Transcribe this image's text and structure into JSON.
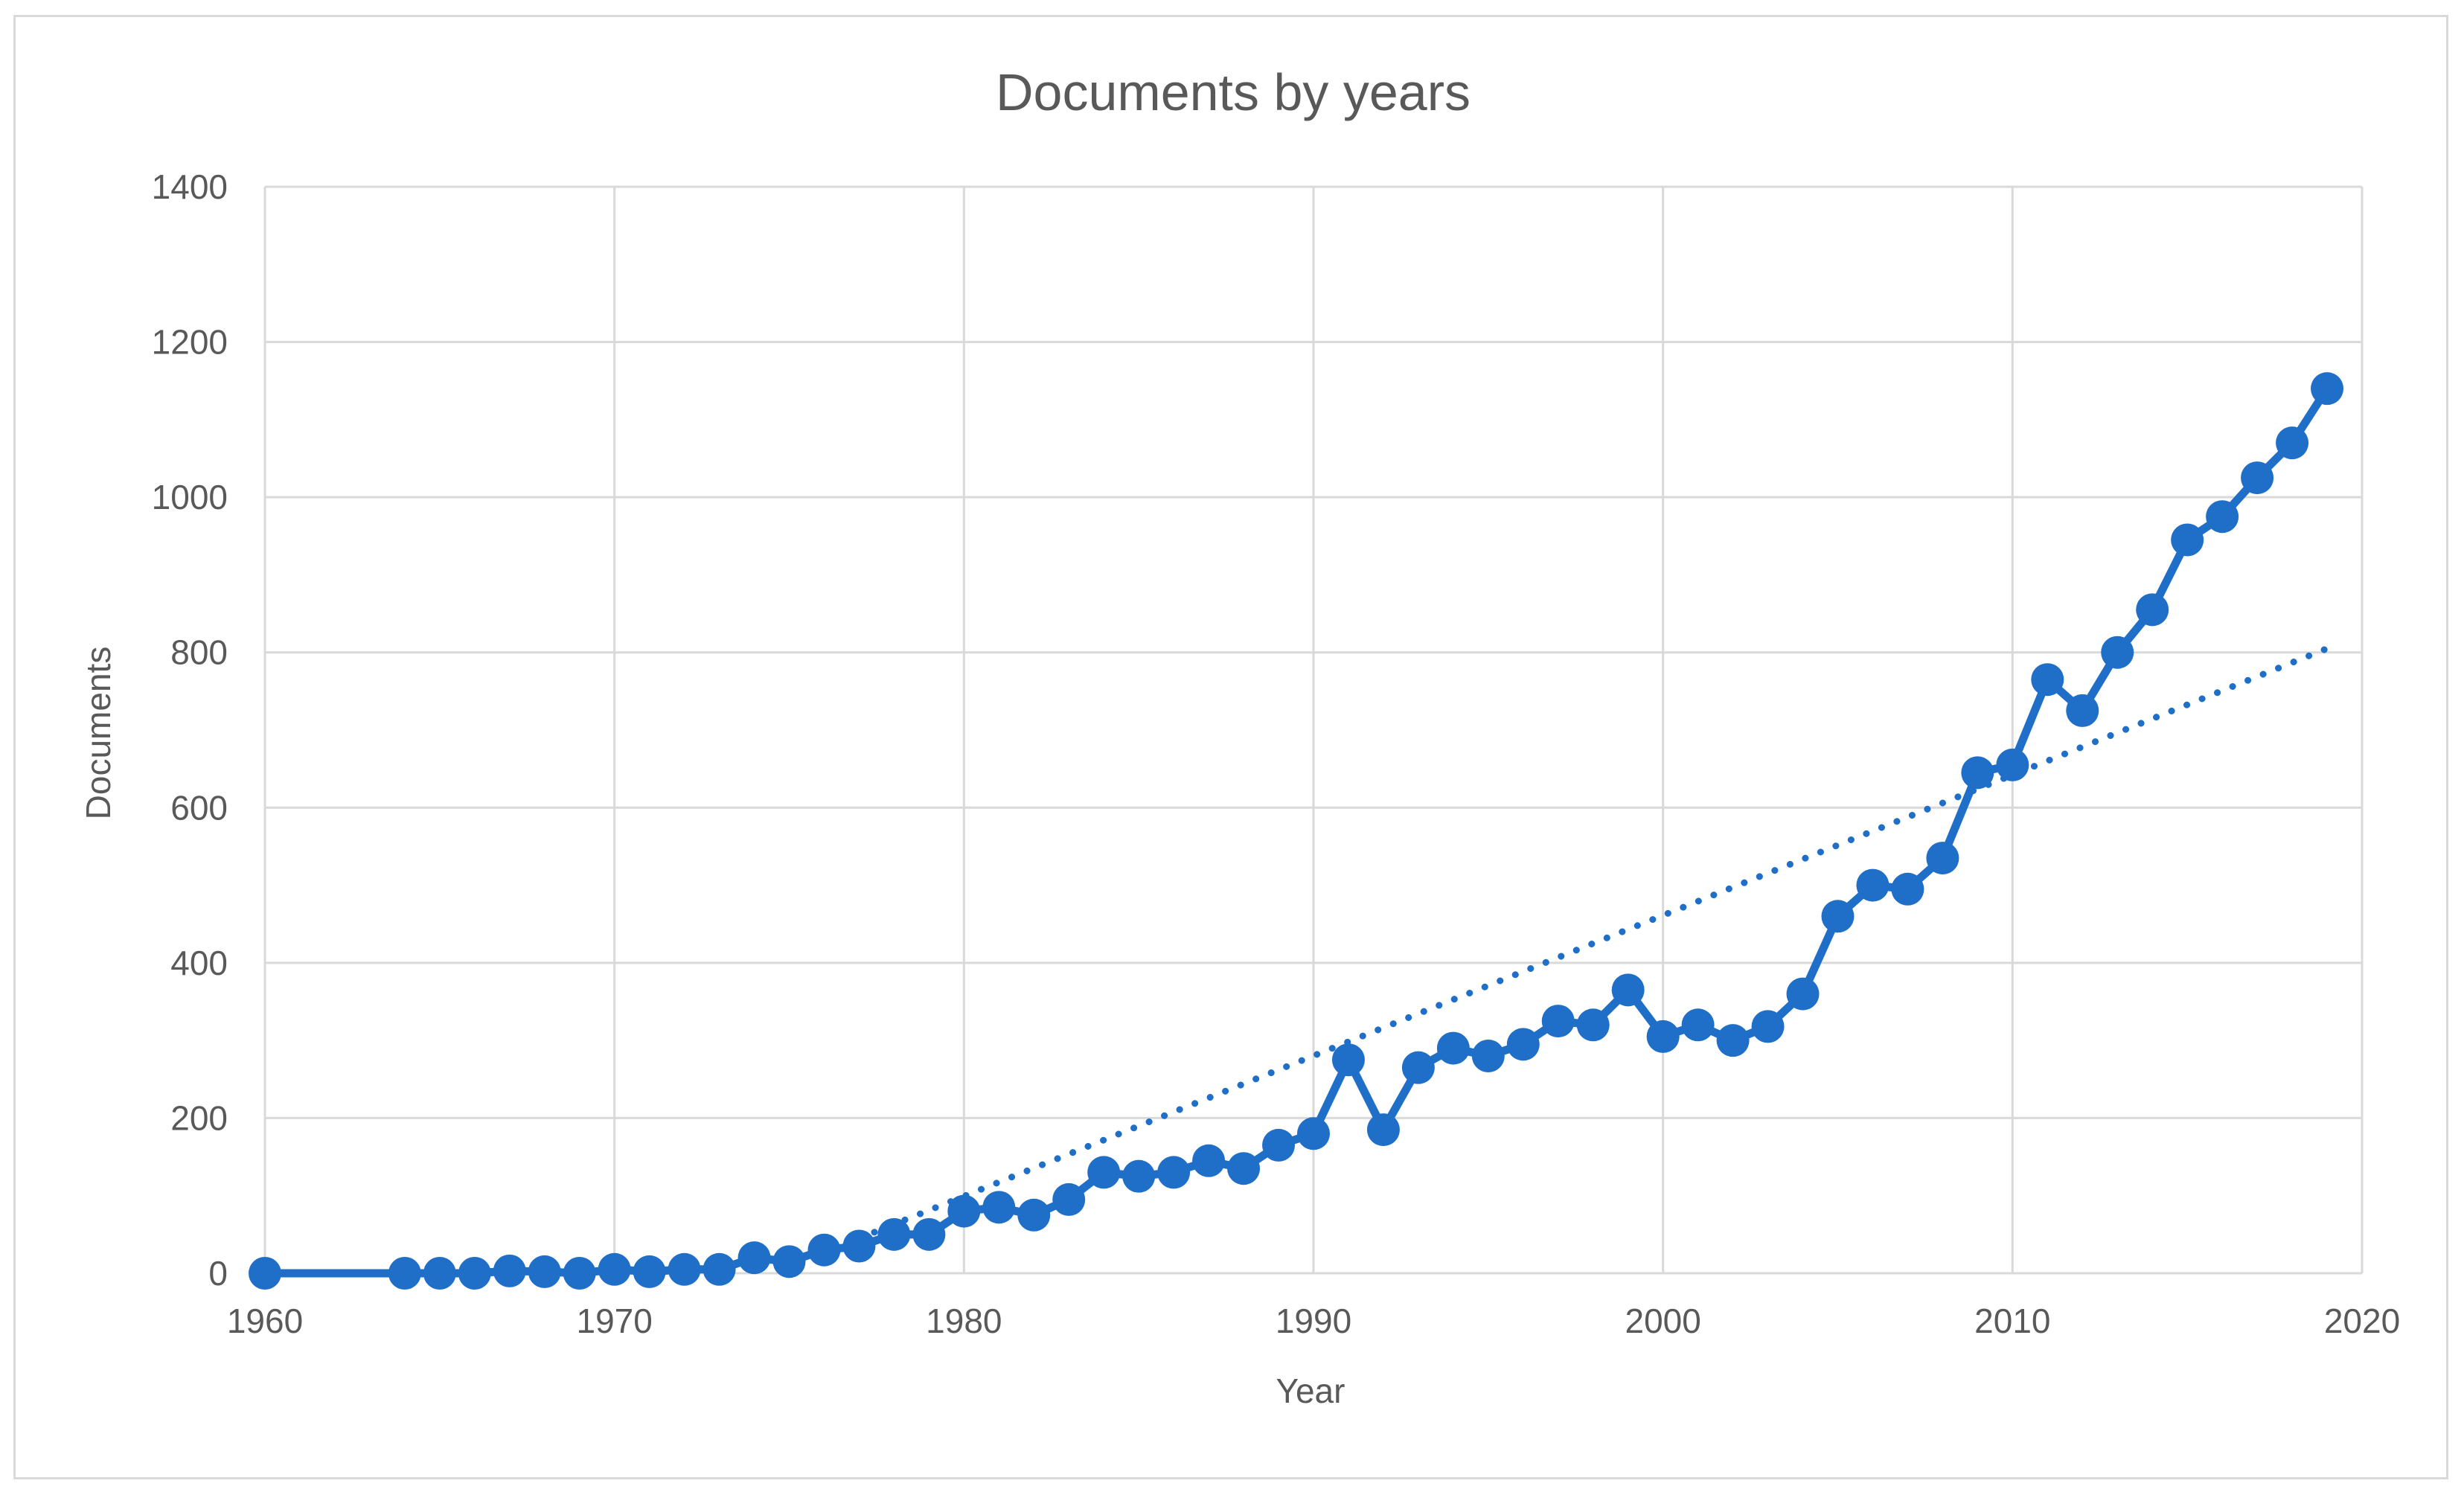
{
  "chart_data": {
    "type": "line",
    "title": "Documents by years",
    "xlabel": "Year",
    "ylabel": "Documents",
    "xlim": [
      1960,
      2020
    ],
    "ylim": [
      0,
      1400
    ],
    "xticks": [
      1960,
      1970,
      1980,
      1990,
      2000,
      2010,
      2020
    ],
    "yticks": [
      0,
      200,
      400,
      600,
      800,
      1000,
      1200,
      1400
    ],
    "grid": true,
    "legend": "none",
    "series_color": "#1f6fc8",
    "series": [
      {
        "x": [
          1960,
          1964,
          1965,
          1966,
          1967,
          1968,
          1969,
          1970,
          1971,
          1972,
          1973,
          1974,
          1975,
          1976,
          1977,
          1978,
          1979,
          1980,
          1981,
          1982,
          1983,
          1984,
          1985,
          1986,
          1987,
          1988,
          1989,
          1990,
          1991,
          1992,
          1993,
          1994,
          1995,
          1996,
          1997,
          1998,
          1999,
          2000,
          2001,
          2002,
          2003,
          2004,
          2005,
          2006,
          2007,
          2008,
          2009,
          2010,
          2011,
          2012,
          2013,
          2014,
          2015,
          2016,
          2017,
          2018,
          2019
        ],
        "y": [
          0,
          0,
          0,
          0,
          3,
          2,
          0,
          5,
          2,
          5,
          5,
          20,
          15,
          30,
          35,
          50,
          50,
          80,
          85,
          75,
          95,
          130,
          125,
          130,
          145,
          135,
          165,
          180,
          275,
          185,
          265,
          290,
          280,
          295,
          325,
          320,
          365,
          305,
          320,
          300,
          318,
          360,
          460,
          500,
          495,
          535,
          645,
          655,
          765,
          725,
          800,
          855,
          945,
          975,
          1025,
          1070,
          1140
        ]
      }
    ],
    "trendline": {
      "style": "dotted",
      "x": [
        1977,
        2019
      ],
      "y": [
        45,
        805
      ]
    }
  }
}
